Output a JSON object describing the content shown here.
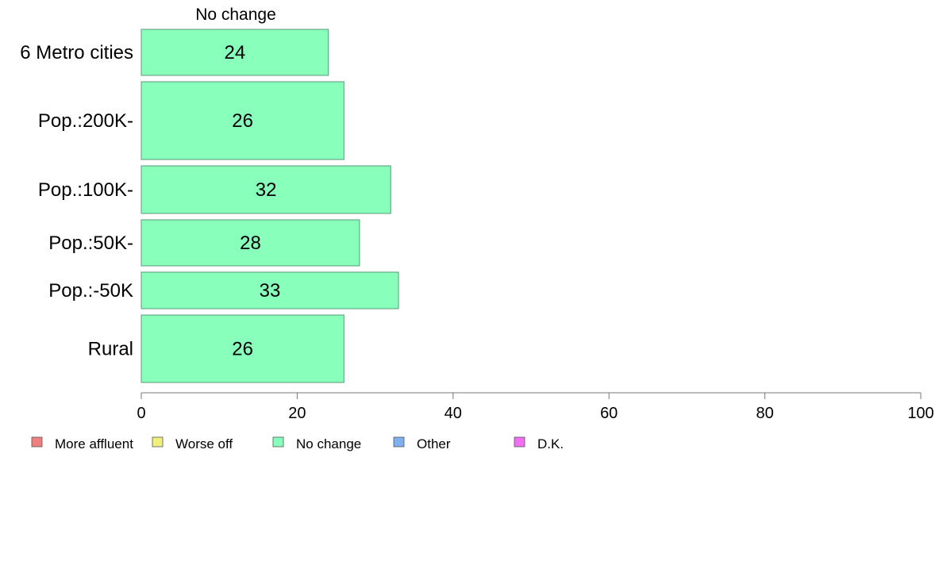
{
  "chart_data": {
    "type": "bar",
    "orientation": "horizontal",
    "series_title": "No change",
    "categories": [
      "6 Metro cities",
      "Pop.:200K-",
      "Pop.:100K-",
      "Pop.:50K-",
      "Pop.:-50K",
      "Rural"
    ],
    "series": [
      {
        "name": "No change",
        "values": [
          24,
          26,
          32,
          28,
          33,
          26
        ],
        "color": "#88ffbb"
      }
    ],
    "xlim": [
      0,
      100
    ],
    "xticks": [
      0,
      20,
      40,
      60,
      80,
      100
    ],
    "grid": false,
    "legend": {
      "position": "bottom-left",
      "items": [
        {
          "label": "More affluent",
          "color": "#f08080"
        },
        {
          "label": "Worse off",
          "color": "#f0f080"
        },
        {
          "label": "No change",
          "color": "#88ffbb"
        },
        {
          "label": "Other",
          "color": "#80b0f0"
        },
        {
          "label": "D.K.",
          "color": "#f070f0"
        }
      ]
    }
  }
}
